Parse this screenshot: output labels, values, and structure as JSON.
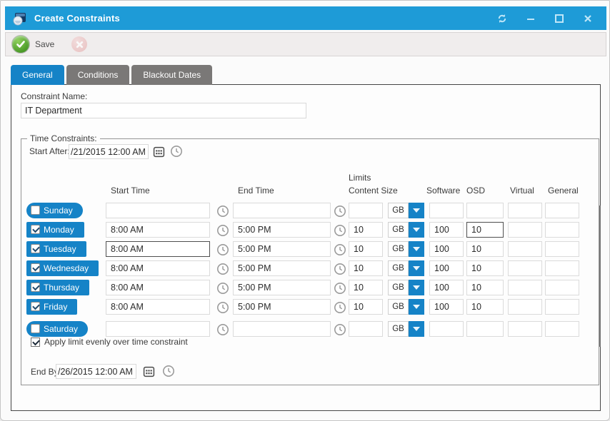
{
  "window": {
    "title": "Create Constraints"
  },
  "toolbar": {
    "save_label": "Save"
  },
  "tabs": [
    {
      "label": "General",
      "active": true
    },
    {
      "label": "Conditions",
      "active": false
    },
    {
      "label": "Blackout Dates",
      "active": false
    }
  ],
  "form": {
    "constraint_name_label": "Constraint Name:",
    "constraint_name_value": "IT Department",
    "time_constraints_legend": "Time Constraints:",
    "start_after_label": "Start After:",
    "start_after_value": "/21/2015 12:00 AM",
    "end_by_label": "End By:",
    "end_by_value": "/26/2015 12:00 AM",
    "apply_limit_label": "Apply limit evenly over time constraint",
    "apply_limit_checked": true
  },
  "grid": {
    "headers": {
      "limits": "Limits",
      "start_time": "Start Time",
      "end_time": "End Time",
      "content_size": "Content Size",
      "software": "Software",
      "osd": "OSD",
      "virtual": "Virtual",
      "general": "General"
    },
    "rows": [
      {
        "day": "Sunday",
        "checked": false,
        "pill": true,
        "start": "",
        "end": "",
        "content_size": "",
        "unit": "GB",
        "software": "",
        "osd": "",
        "virtual": "",
        "general": ""
      },
      {
        "day": "Monday",
        "checked": true,
        "pill": false,
        "start": "8:00 AM",
        "end": "5:00 PM",
        "content_size": "10",
        "unit": "GB",
        "software": "100",
        "osd": "10",
        "virtual": "",
        "general": "",
        "osd_focused": true
      },
      {
        "day": "Tuesday",
        "checked": true,
        "pill": false,
        "start": "8:00 AM",
        "end": "5:00 PM",
        "content_size": "10",
        "unit": "GB",
        "software": "100",
        "osd": "10",
        "virtual": "",
        "general": "",
        "start_focused": true
      },
      {
        "day": "Wednesday",
        "checked": true,
        "pill": false,
        "start": "8:00 AM",
        "end": "5:00 PM",
        "content_size": "10",
        "unit": "GB",
        "software": "100",
        "osd": "10",
        "virtual": "",
        "general": ""
      },
      {
        "day": "Thursday",
        "checked": true,
        "pill": false,
        "start": "8:00 AM",
        "end": "5:00 PM",
        "content_size": "10",
        "unit": "GB",
        "software": "100",
        "osd": "10",
        "virtual": "",
        "general": ""
      },
      {
        "day": "Friday",
        "checked": true,
        "pill": false,
        "start": "8:00 AM",
        "end": "5:00 PM",
        "content_size": "10",
        "unit": "GB",
        "software": "100",
        "osd": "10",
        "virtual": "",
        "general": ""
      },
      {
        "day": "Saturday",
        "checked": false,
        "pill": true,
        "start": "",
        "end": "",
        "content_size": "",
        "unit": "GB",
        "software": "",
        "osd": "",
        "virtual": "",
        "general": ""
      }
    ]
  },
  "colors": {
    "titlebar": "#1e9bd7",
    "accent_blue": "#1583c7",
    "inactive_tab": "#7a7877",
    "save_green": "#4a9a27",
    "cancel_red": "#e4a9a9"
  }
}
